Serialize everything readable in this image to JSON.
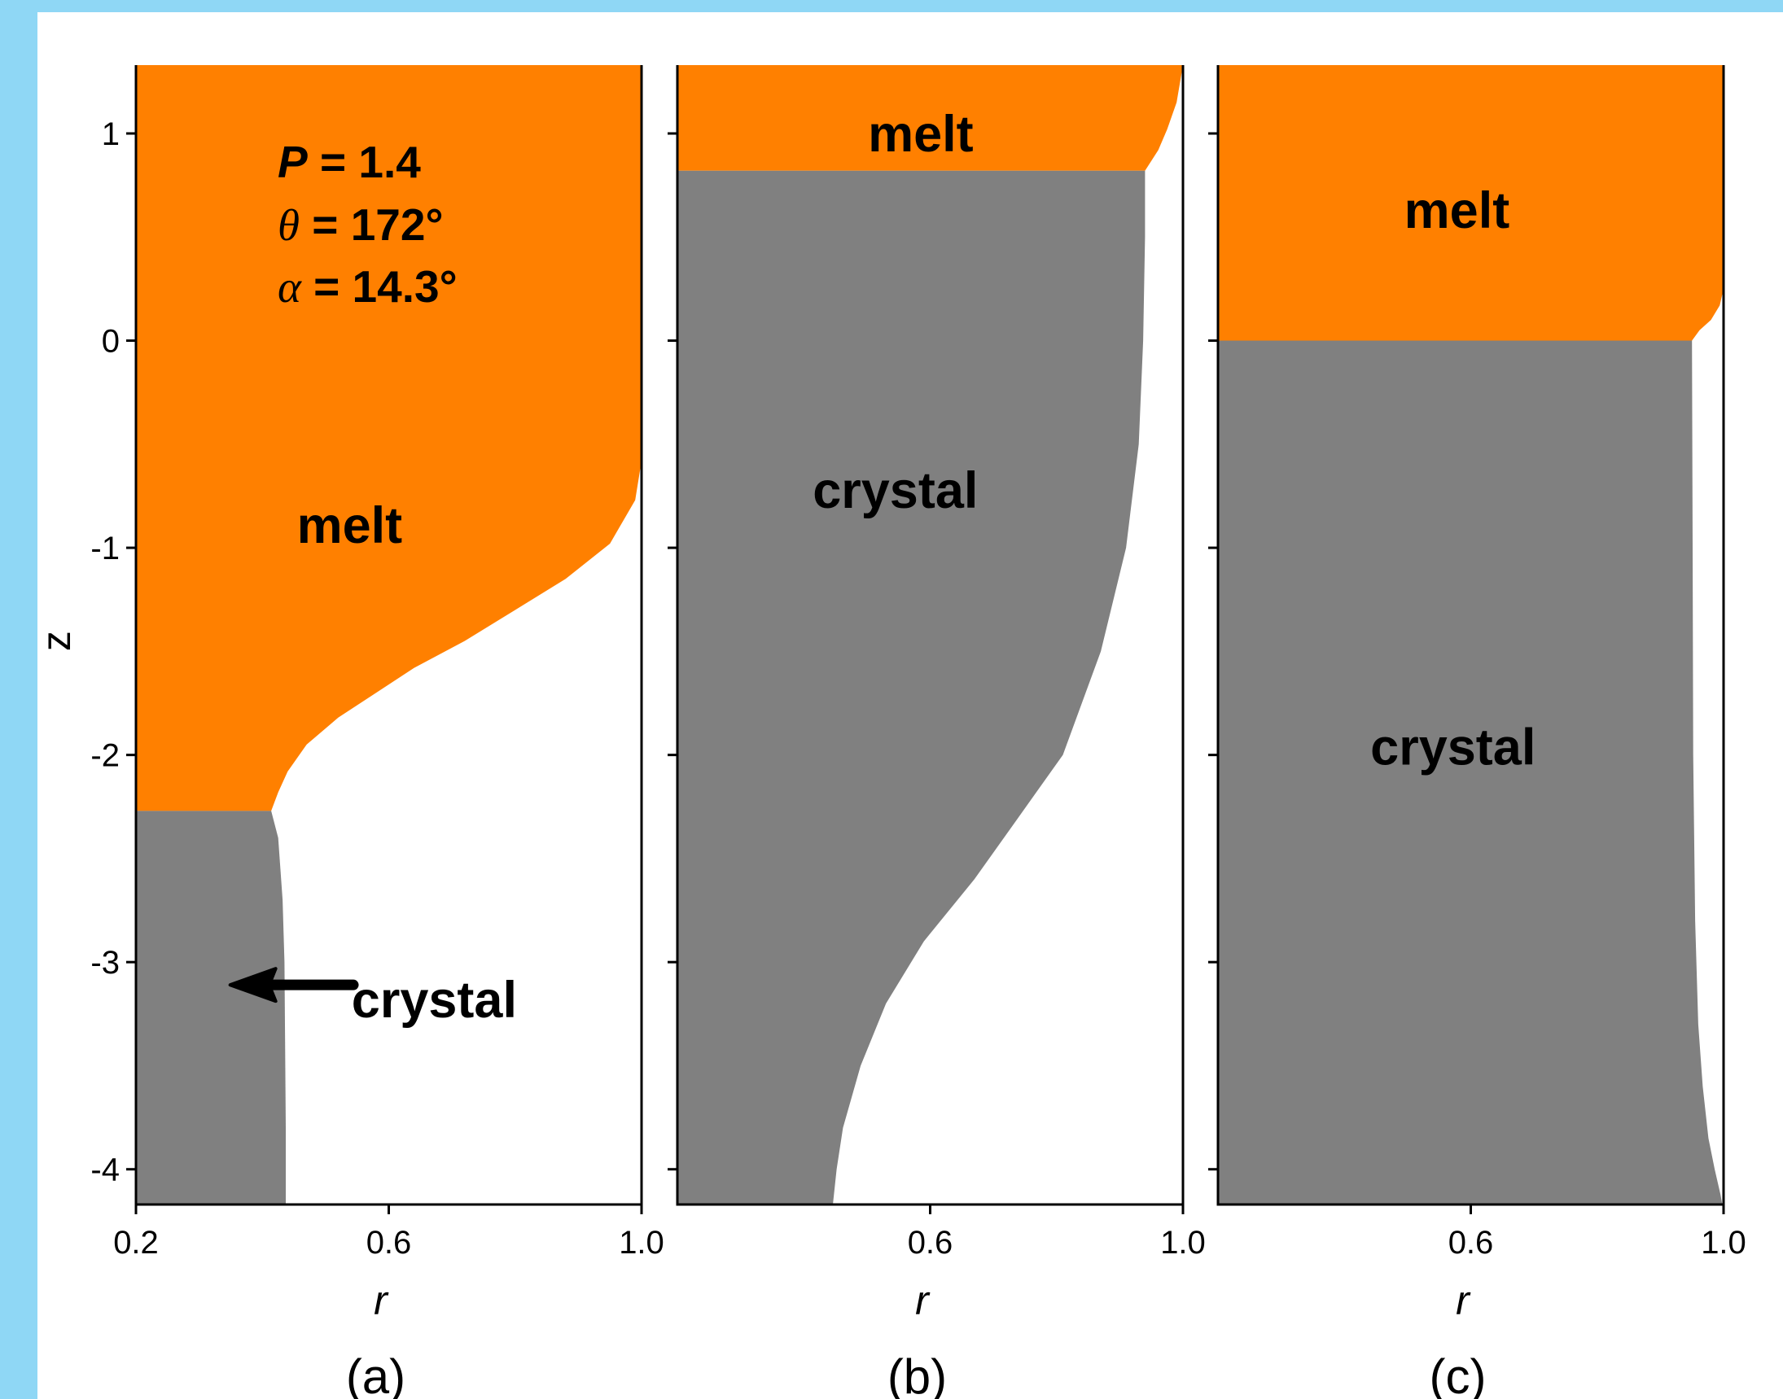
{
  "colors": {
    "page_background": "#8fd7f5",
    "melt": "#ff8000",
    "crystal": "#808080",
    "plot_background": "#ffffff"
  },
  "parameters": [
    {
      "symbol": "P",
      "text": " = 1.4"
    },
    {
      "symbol": "θ",
      "text": " = 172°"
    },
    {
      "symbol": "α",
      "text": " = 14.3°"
    }
  ],
  "chart_data": [
    {
      "type": "area",
      "panel_label": "(a)",
      "xlabel": "r",
      "ylabel": "z",
      "xlim": [
        0.2,
        1.0
      ],
      "ylim": [
        -4.17,
        1.33
      ],
      "xticks": [
        0.2,
        0.6,
        1.0
      ],
      "xtick_labels": [
        "0.2",
        "0.6",
        "1.0"
      ],
      "yticks": [
        1,
        0,
        -1,
        -2,
        -3,
        -4
      ],
      "ytick_labels": [
        "1",
        "0",
        "-1",
        "-2",
        "-3",
        "-4"
      ],
      "interface_z": -2.27,
      "melt_boundary": {
        "r": [
          1.0,
          0.99,
          0.95,
          0.88,
          0.8,
          0.72,
          0.64,
          0.58,
          0.52,
          0.47,
          0.44,
          0.425,
          0.414
        ],
        "z": [
          -0.58,
          -0.77,
          -0.98,
          -1.15,
          -1.3,
          -1.45,
          -1.58,
          -1.7,
          -1.82,
          -1.95,
          -2.08,
          -2.18,
          -2.27
        ]
      },
      "crystal_boundary": {
        "r": [
          0.414,
          0.425,
          0.432,
          0.435,
          0.436,
          0.437,
          0.437
        ],
        "z": [
          -2.27,
          -2.4,
          -2.7,
          -3.0,
          -3.4,
          -3.8,
          -4.17
        ]
      },
      "labels": [
        {
          "text": "melt",
          "r": 0.538,
          "z": -0.89
        },
        {
          "text": "crystal",
          "r": 0.672,
          "z": -3.18
        }
      ],
      "arrow": {
        "from": {
          "r": 0.544,
          "z": -3.11
        },
        "to": {
          "r": 0.349,
          "z": -3.11
        }
      }
    },
    {
      "type": "area",
      "panel_label": "(b)",
      "xlabel": "r",
      "xlim": [
        0.2,
        1.0
      ],
      "ylim": [
        -4.17,
        1.33
      ],
      "xticks": [
        0.6,
        1.0
      ],
      "xtick_labels": [
        "0.6",
        "1.0"
      ],
      "yticks": [
        1,
        0,
        -1,
        -2,
        -3,
        -4
      ],
      "interface_z": 0.82,
      "melt_boundary": {
        "r": [
          1.0,
          0.99,
          0.975,
          0.961,
          0.94
        ],
        "z": [
          1.33,
          1.15,
          1.02,
          0.92,
          0.82
        ]
      },
      "crystal_boundary": {
        "r": [
          0.94,
          0.94,
          0.937,
          0.93,
          0.91,
          0.87,
          0.81,
          0.74,
          0.67,
          0.59,
          0.53,
          0.49,
          0.462,
          0.452,
          0.446
        ],
        "z": [
          0.82,
          0.5,
          0.0,
          -0.5,
          -1.0,
          -1.5,
          -2.0,
          -2.3,
          -2.6,
          -2.9,
          -3.2,
          -3.5,
          -3.8,
          -4.0,
          -4.17
        ]
      },
      "labels": [
        {
          "text": "melt",
          "r": 0.585,
          "z": 1.0
        },
        {
          "text": "crystal",
          "r": 0.545,
          "z": -0.72
        }
      ]
    },
    {
      "type": "area",
      "panel_label": "(c)",
      "xlabel": "r",
      "xlim": [
        0.2,
        1.0
      ],
      "ylim": [
        -4.17,
        1.33
      ],
      "xticks": [
        0.6,
        1.0
      ],
      "xtick_labels": [
        "0.6",
        "1.0"
      ],
      "yticks": [
        1,
        0,
        -1,
        -2,
        -3,
        -4
      ],
      "interface_z": 0.0,
      "melt_boundary": {
        "r": [
          1.0,
          0.994,
          0.98,
          0.962,
          0.95
        ],
        "z": [
          0.25,
          0.17,
          0.1,
          0.05,
          0.0
        ]
      },
      "crystal_boundary": {
        "r": [
          0.95,
          0.951,
          0.952,
          0.955,
          0.96,
          0.967,
          0.976,
          0.986,
          0.995,
          0.998
        ],
        "z": [
          0.0,
          -1.0,
          -2.0,
          -2.8,
          -3.3,
          -3.6,
          -3.85,
          -4.0,
          -4.12,
          -4.17
        ]
      },
      "labels": [
        {
          "text": "melt",
          "r": 0.578,
          "z": 0.63
        },
        {
          "text": "crystal",
          "r": 0.572,
          "z": -1.96
        }
      ]
    }
  ]
}
